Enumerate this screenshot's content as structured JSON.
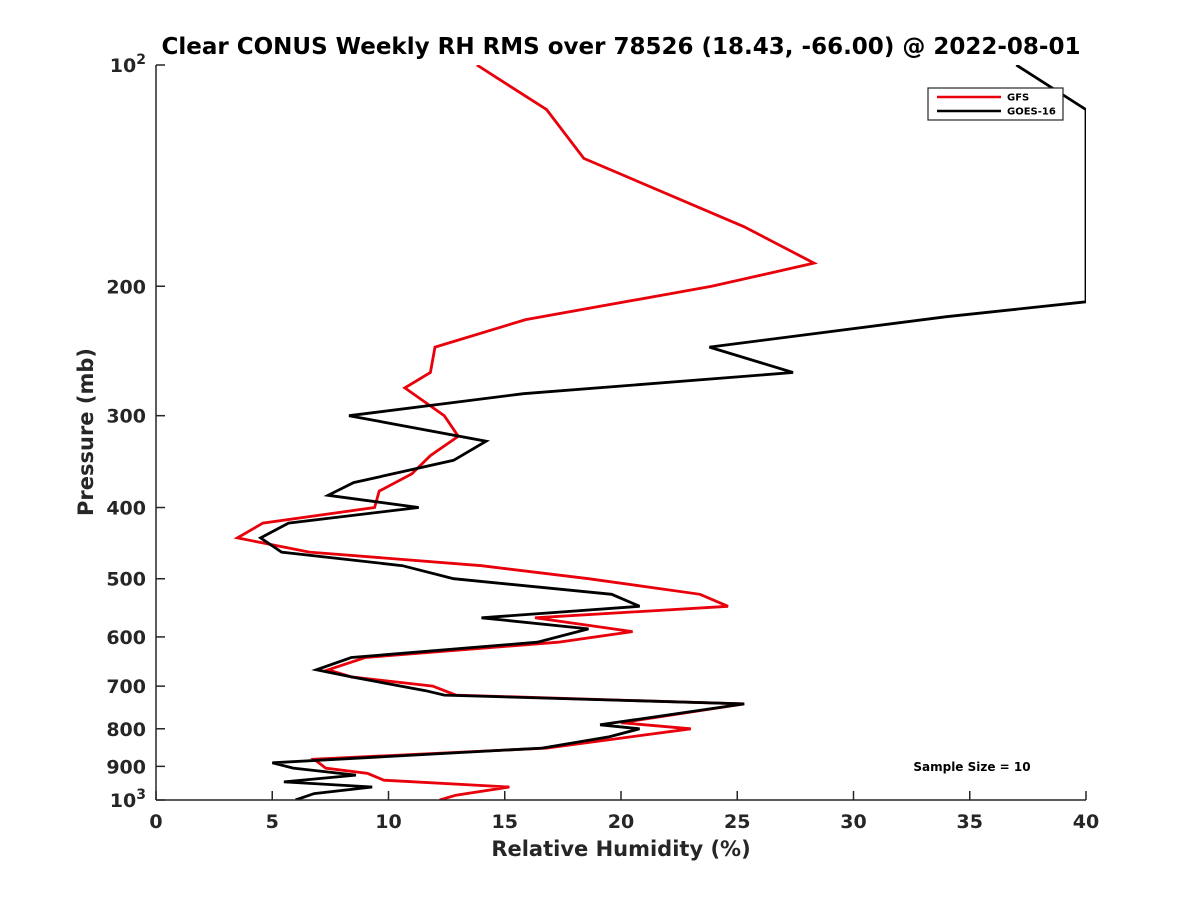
{
  "chart_data": {
    "type": "line",
    "title": "Clear CONUS Weekly RH RMS over 78526 (18.43, -66.00) @ 2022-08-01",
    "xlabel": "Relative Humidity (%)",
    "ylabel": "Pressure (mb)",
    "xlim": [
      0,
      40
    ],
    "ylim": [
      100,
      1000
    ],
    "y_scale": "log",
    "y_reversed": true,
    "grid": false,
    "legend_position": "top-right",
    "x_ticks": [
      "0",
      "5",
      "10",
      "15",
      "20",
      "25",
      "30",
      "35",
      "40"
    ],
    "x_tick_values": [
      0,
      5,
      10,
      15,
      20,
      25,
      30,
      35,
      40
    ],
    "y_ticks": [
      {
        "value": 100,
        "base": "10",
        "exp": "2"
      },
      {
        "value": 200,
        "label": "200"
      },
      {
        "value": 300,
        "label": "300"
      },
      {
        "value": 400,
        "label": "400"
      },
      {
        "value": 500,
        "label": "500"
      },
      {
        "value": 600,
        "label": "600"
      },
      {
        "value": 700,
        "label": "700"
      },
      {
        "value": 800,
        "label": "800"
      },
      {
        "value": 900,
        "label": "900"
      },
      {
        "value": 1000,
        "base": "10",
        "exp": "3"
      }
    ],
    "series": [
      {
        "name": "GFS",
        "color": "#e8000b",
        "points": [
          [
            13.8,
            100
          ],
          [
            16.8,
            115
          ],
          [
            18.4,
            134
          ],
          [
            25.3,
            166
          ],
          [
            28.3,
            186
          ],
          [
            23.9,
            200
          ],
          [
            15.9,
            222
          ],
          [
            12.0,
            242
          ],
          [
            11.8,
            262
          ],
          [
            10.7,
            275
          ],
          [
            12.4,
            300
          ],
          [
            13.0,
            320
          ],
          [
            11.8,
            340
          ],
          [
            11.0,
            360
          ],
          [
            9.6,
            380
          ],
          [
            9.4,
            400
          ],
          [
            4.6,
            420
          ],
          [
            3.5,
            440
          ],
          [
            6.6,
            460
          ],
          [
            14.0,
            480
          ],
          [
            18.6,
            500
          ],
          [
            23.4,
            525
          ],
          [
            24.6,
            545
          ],
          [
            16.3,
            565
          ],
          [
            20.5,
            590
          ],
          [
            17.3,
            610
          ],
          [
            9.0,
            640
          ],
          [
            7.4,
            665
          ],
          [
            8.4,
            680
          ],
          [
            11.9,
            700
          ],
          [
            12.9,
            720
          ],
          [
            25.3,
            740
          ],
          [
            20.0,
            785
          ],
          [
            23.0,
            800
          ],
          [
            16.8,
            850
          ],
          [
            6.8,
            880
          ],
          [
            7.3,
            905
          ],
          [
            9.1,
            920
          ],
          [
            9.8,
            940
          ],
          [
            15.2,
            960
          ],
          [
            12.9,
            985
          ],
          [
            12.2,
            1000
          ]
        ]
      },
      {
        "name": "GOES-16",
        "color": "#000000",
        "points": [
          [
            37.0,
            100
          ],
          [
            40.0,
            115
          ],
          [
            40.0,
            210
          ],
          [
            34.0,
            220
          ],
          [
            23.8,
            242
          ],
          [
            27.4,
            262
          ],
          [
            15.8,
            280
          ],
          [
            8.3,
            300
          ],
          [
            14.2,
            325
          ],
          [
            12.8,
            345
          ],
          [
            8.5,
            370
          ],
          [
            7.4,
            385
          ],
          [
            11.3,
            400
          ],
          [
            5.7,
            420
          ],
          [
            4.5,
            440
          ],
          [
            5.4,
            460
          ],
          [
            10.6,
            480
          ],
          [
            12.8,
            500
          ],
          [
            19.6,
            525
          ],
          [
            20.8,
            545
          ],
          [
            14.0,
            565
          ],
          [
            18.6,
            585
          ],
          [
            16.4,
            610
          ],
          [
            8.4,
            640
          ],
          [
            6.9,
            665
          ],
          [
            8.4,
            680
          ],
          [
            11.6,
            710
          ],
          [
            12.4,
            720
          ],
          [
            25.3,
            740
          ],
          [
            19.1,
            790
          ],
          [
            20.8,
            800
          ],
          [
            19.5,
            820
          ],
          [
            16.6,
            850
          ],
          [
            5.0,
            890
          ],
          [
            5.9,
            905
          ],
          [
            8.6,
            925
          ],
          [
            5.5,
            945
          ],
          [
            9.3,
            960
          ],
          [
            6.8,
            980
          ],
          [
            6.0,
            1000
          ]
        ]
      }
    ],
    "annotation": "Sample Size = 10"
  }
}
